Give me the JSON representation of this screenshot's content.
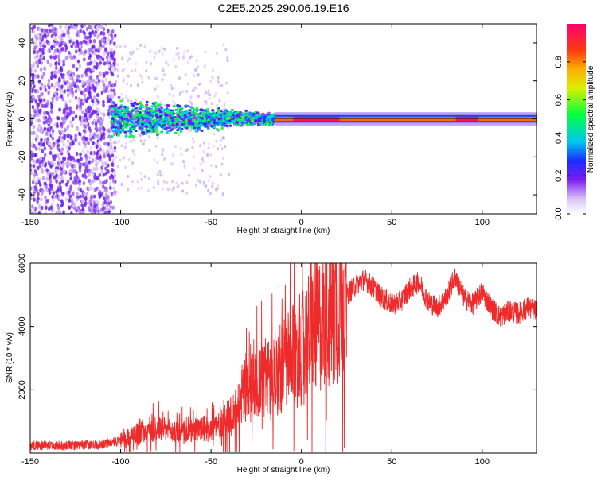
{
  "figure_title": "C2E5.2025.290.06.19.E16",
  "colors": {
    "axes": "#000000",
    "snr_line": "#ee2a2a",
    "background": "#ffffff"
  },
  "colorbar": {
    "label": "Normalized spectral amplitude",
    "ticks": [
      "0.0",
      "0.2",
      "0.4",
      "0.6",
      "0.8"
    ],
    "tick_values": [
      0.0,
      0.2,
      0.4,
      0.6,
      0.8
    ],
    "range": [
      0,
      1
    ]
  },
  "chart_data": [
    {
      "type": "heatmap",
      "title": "C2E5.2025.290.06.19.E16",
      "xlabel": "Height of straight line (km)",
      "ylabel": "Frequency (Hz)",
      "xlim": [
        -150,
        130
      ],
      "ylim": [
        -50,
        50
      ],
      "xticks": [
        "-150",
        "-100",
        "-50",
        "0",
        "50",
        "100"
      ],
      "xtick_values": [
        -150,
        -100,
        -50,
        0,
        50,
        100
      ],
      "yticks": [
        "-40",
        "-20",
        "0",
        "20",
        "40"
      ],
      "ytick_values": [
        -40,
        -20,
        0,
        20,
        40
      ],
      "colorbar_label": "Normalized spectral amplitude",
      "features": [
        {
          "x_range": [
            -150,
            -105
          ],
          "freq_range": [
            -50,
            50
          ],
          "amplitude": "0.1-0.2 scattered noise"
        },
        {
          "x_range": [
            -105,
            -15
          ],
          "freq_range": [
            -12,
            12
          ],
          "amplitude": "0.2-0.6 broadening signal"
        },
        {
          "x_range": [
            -15,
            130
          ],
          "freq_range": [
            -2,
            2
          ],
          "amplitude": "0.8-1.0 narrow line"
        }
      ]
    },
    {
      "type": "line",
      "xlabel": "Height of straight line (km)",
      "ylabel": "SNR (10 * v/v)",
      "xlim": [
        -150,
        130
      ],
      "ylim": [
        0,
        6000
      ],
      "xticks": [
        "-150",
        "-100",
        "-50",
        "0",
        "50",
        "100"
      ],
      "xtick_values": [
        -150,
        -100,
        -50,
        0,
        50,
        100
      ],
      "yticks": [
        "2000",
        "4000",
        "6000"
      ],
      "ytick_values": [
        2000,
        4000,
        6000
      ],
      "series": [
        {
          "name": "SNR",
          "x": [
            -150,
            -130,
            -110,
            -100,
            -90,
            -80,
            -70,
            -60,
            -50,
            -40,
            -35,
            -30,
            -25,
            -20,
            -15,
            -10,
            -5,
            0,
            5,
            10,
            15,
            20,
            25,
            30,
            35,
            40,
            45,
            50,
            55,
            60,
            65,
            70,
            75,
            80,
            85,
            90,
            95,
            100,
            105,
            110,
            115,
            120,
            125,
            130
          ],
          "values": [
            250,
            230,
            280,
            400,
            700,
            800,
            650,
            700,
            800,
            1100,
            1500,
            2200,
            2300,
            2400,
            2500,
            2800,
            3000,
            3300,
            3800,
            4100,
            4300,
            4700,
            5000,
            5300,
            5500,
            5200,
            4900,
            4700,
            4800,
            5200,
            5400,
            4800,
            4600,
            4900,
            5600,
            4900,
            4700,
            5100,
            4600,
            4300,
            4500,
            4400,
            4600,
            4500
          ]
        }
      ]
    }
  ]
}
